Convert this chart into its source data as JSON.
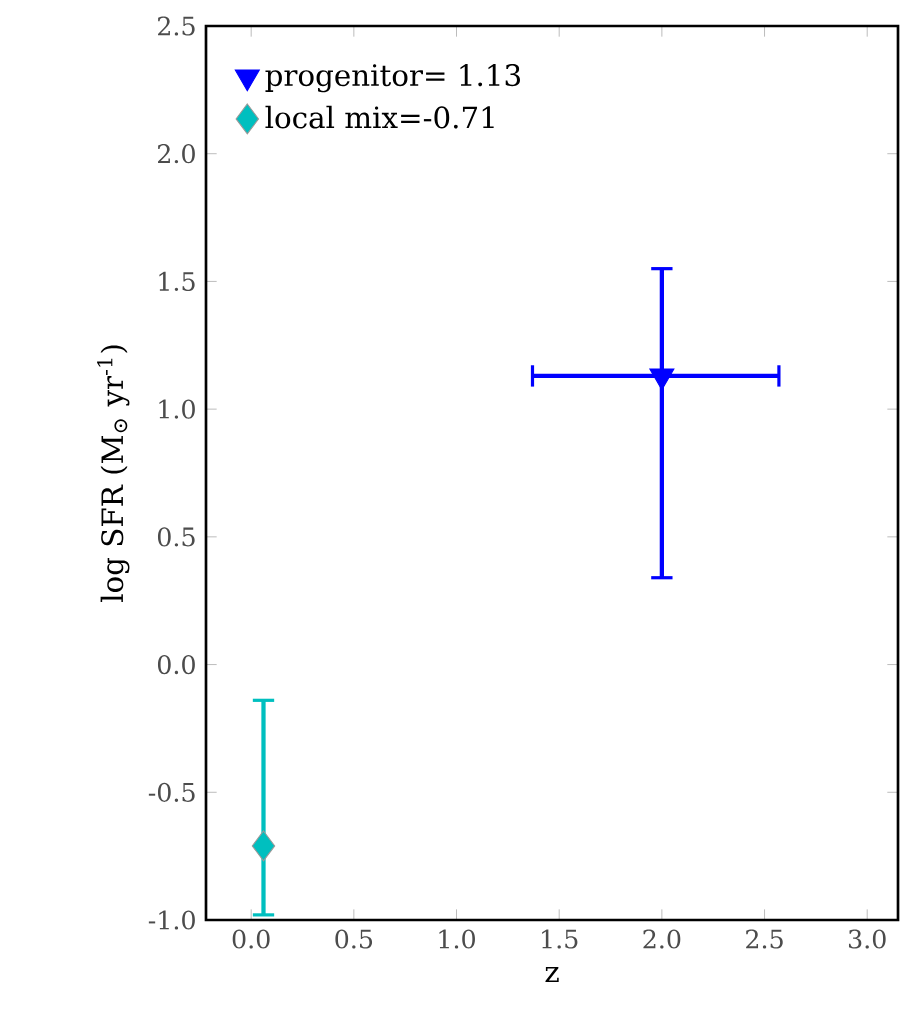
{
  "chart_data": {
    "type": "scatter",
    "xlabel": "z",
    "ylabel": "log SFR (M$_{⊙}$ yr$^{-1}$)",
    "series": [
      {
        "name": "progenitor= 1.13",
        "color": "#0000ff",
        "marker": "triangle",
        "x": [
          2.0
        ],
        "values": [
          1.13
        ],
        "errors": [
          [
            0.34,
            1.55
          ]
        ],
        "xerrors": [
          [
            1.37,
            2.57
          ]
        ]
      },
      {
        "name": "local mix=-0.71",
        "color": "#00bfbf",
        "marker": "diamond",
        "x": [
          0.06
        ],
        "values": [
          -0.71
        ],
        "errors": [
          [
            -0.98,
            -0.14
          ]
        ]
      }
    ],
    "xlim": [
      -0.22,
      3.15
    ],
    "ylim": [
      -1.0,
      2.5
    ],
    "xticks": [
      {
        "value": 0,
        "label": "0.0"
      },
      0.5,
      {
        "value": 1,
        "label": "1.0"
      },
      1.5,
      {
        "value": 2,
        "label": "2.0"
      },
      2.5,
      {
        "value": 3,
        "label": "3.0"
      }
    ],
    "yticks": [
      {
        "value": -1,
        "label": "-1.0"
      },
      -0.5,
      {
        "value": 0,
        "label": "0.0"
      },
      0.5,
      {
        "value": 1,
        "label": "1.0"
      },
      1.5,
      {
        "value": 2,
        "label": "2.0"
      },
      2.5
    ],
    "legend": "top left",
    "grid": false
  }
}
